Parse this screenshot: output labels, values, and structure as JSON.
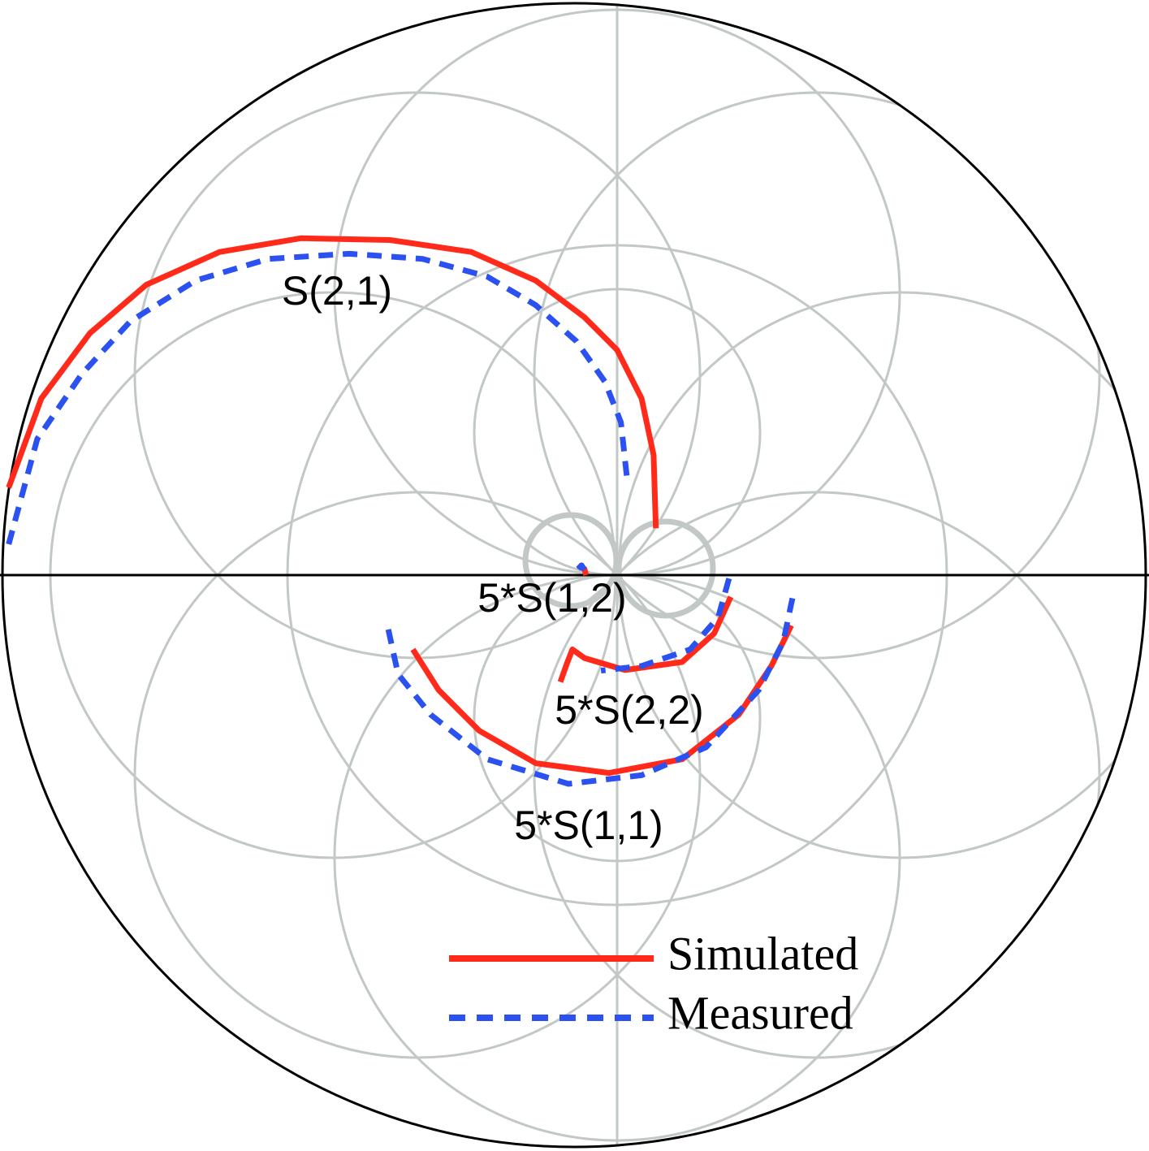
{
  "chart_data": {
    "type": "smith",
    "xlim": [
      -1,
      1
    ],
    "ylim": [
      -1,
      1
    ],
    "annotations": [
      "S(2,1)",
      "5*S(1,2)",
      "5*S(2,2)",
      "5*S(1,1)"
    ],
    "series": [
      {
        "name": "Simulated",
        "color": "#ff2a1a",
        "dash": "solid",
        "curves": [
          {
            "x": [
              0.143,
              0.139,
              0.118,
              0.075,
              0.018,
              -0.067,
              -0.18,
              -0.322,
              -0.478,
              -0.62,
              -0.748,
              -0.847,
              -0.932,
              -0.989
            ],
            "values": [
              0.082,
              0.21,
              0.309,
              0.394,
              0.451,
              0.515,
              0.565,
              0.586,
              0.589,
              0.565,
              0.508,
              0.423,
              0.309,
              0.153
            ]
          },
          {
            "x": [
              0.007,
              0.018,
              0.021
            ],
            "values": [
              0.016,
              0.011,
              0.0
            ]
          },
          {
            "x": [
              0.274,
              0.245,
              0.189,
              0.089,
              0.018,
              -0.003,
              -0.013,
              -0.024
            ],
            "values": [
              -0.038,
              -0.102,
              -0.152,
              -0.166,
              -0.145,
              -0.13,
              -0.156,
              -0.187
            ]
          },
          {
            "x": [
              -0.282,
              -0.237,
              -0.166,
              -0.067,
              0.061,
              0.189,
              0.288,
              0.345,
              0.38
            ],
            "values": [
              -0.13,
              -0.201,
              -0.272,
              -0.329,
              -0.346,
              -0.322,
              -0.244,
              -0.159,
              -0.088
            ]
          }
        ]
      },
      {
        "name": "Measured",
        "color": "#2b52f0",
        "dash": "dashed",
        "curves": [
          {
            "x": [
              0.092,
              0.082,
              0.054,
              0.004,
              -0.067,
              -0.152,
              -0.265,
              -0.393,
              -0.535,
              -0.662,
              -0.776,
              -0.861,
              -0.939,
              -0.989
            ],
            "values": [
              0.174,
              0.267,
              0.338,
              0.409,
              0.472,
              0.522,
              0.553,
              0.562,
              0.553,
              0.515,
              0.444,
              0.352,
              0.238,
              0.054
            ]
          },
          {
            "x": [
              0.007,
              0.013,
              0.018
            ],
            "values": [
              0.011,
              0.017,
              0.009
            ]
          },
          {
            "x": [
              0.271,
              0.252,
              0.203,
              0.118,
              0.047
            ],
            "values": [
              -0.006,
              -0.074,
              -0.13,
              -0.159,
              -0.167
            ]
          },
          {
            "x": [
              -0.325,
              -0.308,
              -0.251,
              -0.152,
              -0.01,
              0.118,
              0.231,
              0.323,
              0.366,
              0.384
            ],
            "values": [
              -0.095,
              -0.173,
              -0.244,
              -0.322,
              -0.365,
              -0.35,
              -0.301,
              -0.201,
              -0.116,
              -0.031
            ]
          }
        ]
      }
    ]
  }
}
